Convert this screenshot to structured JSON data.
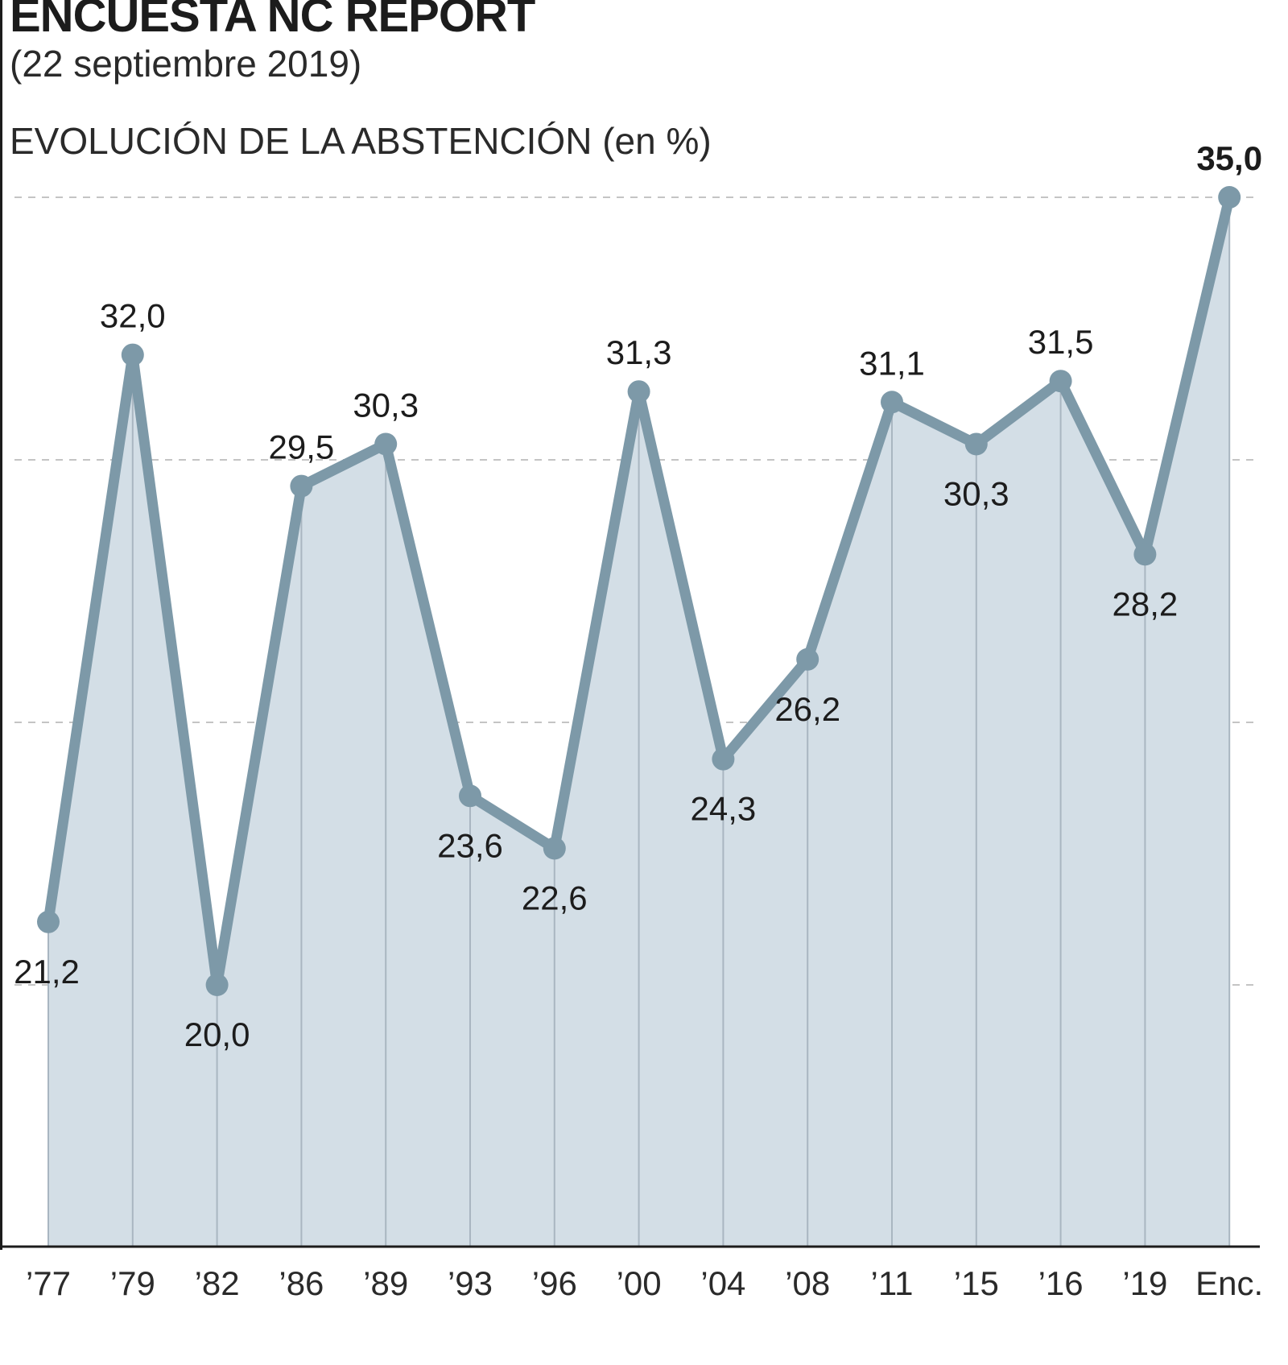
{
  "header": {
    "title": "ENCUESTA NC REPORT",
    "date": "(22 septiembre 2019)",
    "subtitle": "EVOLUCIÓN DE LA ABSTENCIÓN (en %)"
  },
  "colors": {
    "line": "#7d99a8",
    "area": "#d3dee6",
    "grid": "#c4c4c4",
    "text": "#1c1c1c"
  },
  "chart_data": {
    "type": "area",
    "title": "EVOLUCIÓN DE LA ABSTENCIÓN (en %)",
    "xlabel": "",
    "ylabel": "%",
    "categories": [
      "’77",
      "’79",
      "’82",
      "’86",
      "’89",
      "’93",
      "’96",
      "’00",
      "’04",
      "’08",
      "’11",
      "’15",
      "’16",
      "’19",
      "Enc."
    ],
    "values": [
      21.2,
      32.0,
      20.0,
      29.5,
      30.3,
      23.6,
      22.6,
      31.3,
      24.3,
      26.2,
      31.1,
      30.3,
      31.5,
      28.2,
      35.0
    ],
    "labels": [
      "21,2",
      "32,0",
      "20,0",
      "29,5",
      "30,3",
      "23,6",
      "22,6",
      "31,3",
      "24,3",
      "26,2",
      "31,1",
      "30,3",
      "31,5",
      "28,2",
      "35,0"
    ],
    "label_positions": [
      "below",
      "above",
      "below",
      "above",
      "above",
      "below",
      "below",
      "above",
      "below",
      "below",
      "above",
      "below",
      "above",
      "below",
      "above"
    ],
    "highlight_last": true,
    "ylim": [
      15,
      35
    ],
    "gridlines": [
      20,
      25,
      30,
      35
    ],
    "grid": true,
    "legend": "none"
  }
}
